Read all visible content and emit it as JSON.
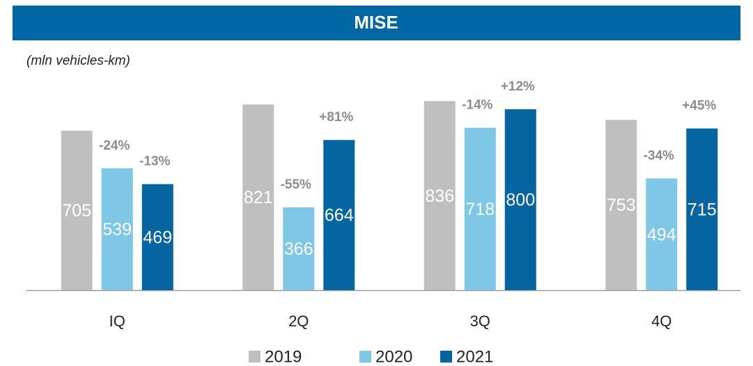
{
  "chart_data": {
    "type": "bar",
    "title": "MISE",
    "subtitle": "(mln vehicles-km)",
    "categories": [
      "IQ",
      "2Q",
      "3Q",
      "4Q"
    ],
    "series": [
      {
        "name": "2019",
        "color": "#bfbfbf",
        "values": [
          705,
          821,
          836,
          753
        ]
      },
      {
        "name": "2020",
        "color": "#7fc7e6",
        "values": [
          539,
          366,
          718,
          494
        ],
        "change_labels": [
          "-24%",
          "-55%",
          "-14%",
          "-34%"
        ]
      },
      {
        "name": "2021",
        "color": "#0565a1",
        "values": [
          469,
          664,
          800,
          715
        ],
        "change_labels": [
          "-13%",
          "+81%",
          "+12%",
          "+45%"
        ]
      }
    ],
    "ylim": [
      0,
      1000
    ],
    "grid": false,
    "legend": "bottom"
  }
}
